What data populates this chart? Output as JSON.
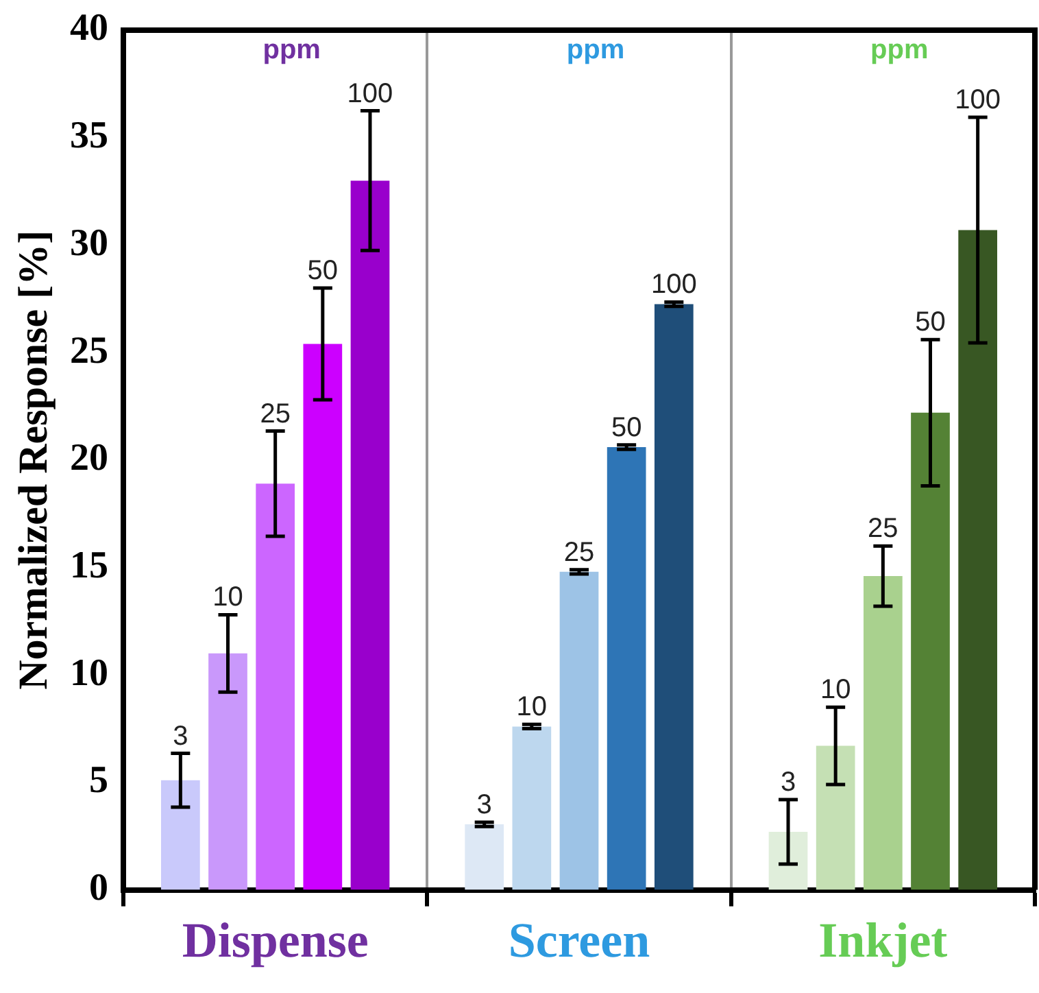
{
  "chart_data": {
    "type": "bar",
    "ylabel": "Normalized Response [%]",
    "categories": [
      "Dispense",
      "Screen",
      "Inkjet"
    ],
    "series": [
      {
        "name": "3",
        "colors": [
          "#c9c9fb",
          "#dde8f5",
          "#e0eedb"
        ],
        "values": [
          5.1,
          3.05,
          2.7
        ],
        "errors": [
          1.25,
          0.1,
          1.5
        ]
      },
      {
        "name": "10",
        "colors": [
          "#c998fb",
          "#bdd7ee",
          "#c5e0b4"
        ],
        "values": [
          11.0,
          7.6,
          6.7
        ],
        "errors": [
          1.8,
          0.1,
          1.8
        ]
      },
      {
        "name": "25",
        "colors": [
          "#cc66ff",
          "#9dc3e6",
          "#a9d18e"
        ],
        "values": [
          18.9,
          14.8,
          14.6
        ],
        "errors": [
          2.45,
          0.1,
          1.4
        ]
      },
      {
        "name": "50",
        "colors": [
          "#cc00ff",
          "#2e75b6",
          "#548235"
        ],
        "values": [
          25.4,
          20.6,
          22.2
        ],
        "errors": [
          2.6,
          0.1,
          3.4
        ]
      },
      {
        "name": "100",
        "colors": [
          "#9900cc",
          "#1f4e79",
          "#385723"
        ],
        "values": [
          33.0,
          27.25,
          30.7
        ],
        "errors": [
          3.25,
          0.1,
          5.25
        ]
      }
    ],
    "annotations": [
      "ppm",
      "ppm",
      "ppm"
    ],
    "ylim": [
      0,
      40
    ],
    "yticks": [
      0,
      5,
      10,
      15,
      20,
      25,
      30,
      35,
      40
    ],
    "grid": "x",
    "legend": false
  }
}
